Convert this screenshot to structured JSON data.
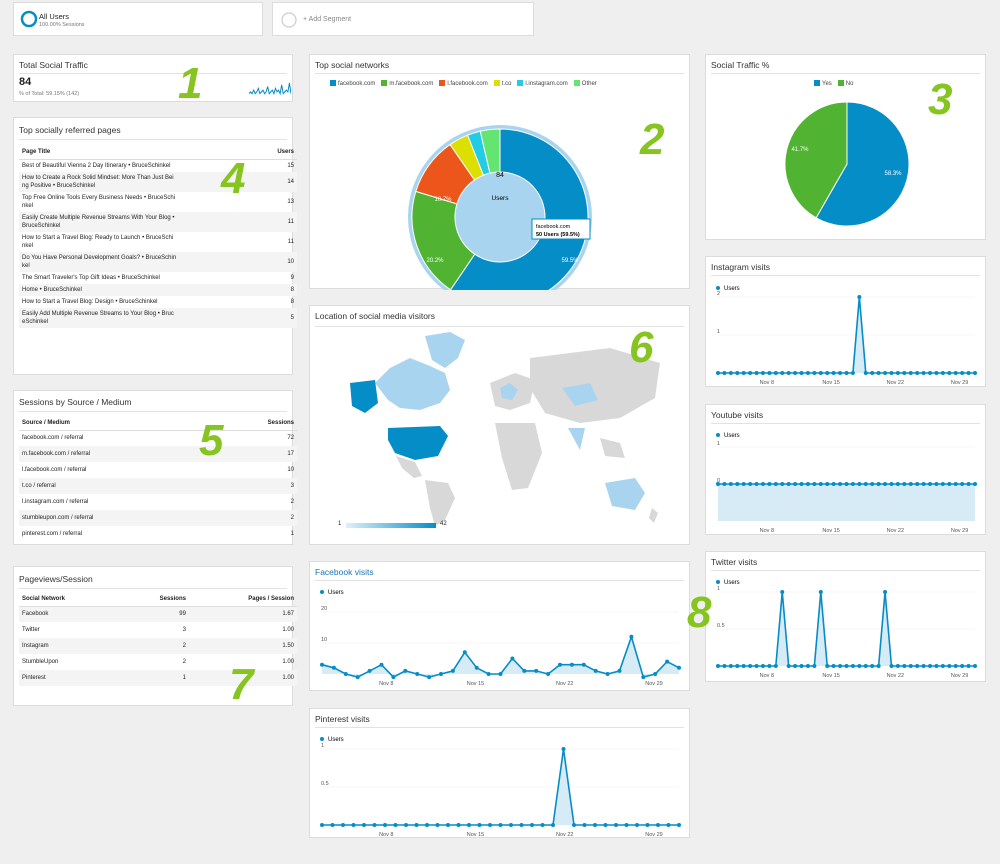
{
  "segments": {
    "all_users": {
      "label": "All Users",
      "sub": "100.00% Sessions"
    },
    "add_segment": "+ Add Segment"
  },
  "total_social": {
    "title": "Total Social Traffic",
    "value": "84",
    "sub": "% of Total: 59.15% (142)",
    "sparkline": [
      3,
      4,
      3,
      5,
      3,
      4,
      6,
      3,
      4,
      5,
      3,
      4,
      7,
      3,
      4,
      5,
      3,
      6,
      4,
      5,
      3,
      8,
      3,
      4,
      5,
      4,
      9,
      3
    ]
  },
  "markers": [
    "1",
    "2",
    "3",
    "4",
    "5",
    "6",
    "7",
    "8"
  ],
  "top_pages": {
    "title": "Top socially referred pages",
    "col1": "Page Title",
    "col2": "Users",
    "rows": [
      {
        "title": "Best of Beautiful Vienna 2 Day Itinerary • BruceSchinkel",
        "users": "15"
      },
      {
        "title": "How to Create a Rock Solid Mindset: More Than Just Bei\nng Positive • BruceSchinkel",
        "users": "14"
      },
      {
        "title": "Top Free Online Tools Every Business Needs • BruceSchi\nnkel",
        "users": "13"
      },
      {
        "title": "Easily Create Multiple Revenue Streams With Your Blog •\nBruceSchinkel",
        "users": "11"
      },
      {
        "title": "How to Start a Travel Blog: Ready to Launch • BruceSchi\nnkel",
        "users": "11"
      },
      {
        "title": "Do You Have Personal Development Goals? • BruceSchin\nkel",
        "users": "10"
      },
      {
        "title": "The Smart Traveler's Top Gift Ideas • BruceSchinkel",
        "users": "9"
      },
      {
        "title": "Home • BruceSchinkel",
        "users": "8"
      },
      {
        "title": "How to Start a Travel Blog: Design • BruceSchinkel",
        "users": "8"
      },
      {
        "title": "Easily Add Multiple Revenue Streams to Your Blog • Bruc\neSchinkel",
        "users": "5"
      }
    ]
  },
  "sessions_source": {
    "title": "Sessions by Source / Medium",
    "col1": "Source / Medium",
    "col2": "Sessions",
    "rows": [
      {
        "source": "facebook.com / referral",
        "sessions": "72"
      },
      {
        "source": "m.facebook.com / referral",
        "sessions": "17"
      },
      {
        "source": "l.facebook.com / referral",
        "sessions": "10"
      },
      {
        "source": "t.co / referral",
        "sessions": "3"
      },
      {
        "source": "l.instagram.com / referral",
        "sessions": "2"
      },
      {
        "source": "stumbleupon.com / referral",
        "sessions": "2"
      },
      {
        "source": "pinterest.com / referral",
        "sessions": "1"
      }
    ]
  },
  "pageviews": {
    "title": "Pageviews/Session",
    "col1": "Social Network",
    "col2": "Sessions",
    "col3": "Pages / Session",
    "rows": [
      {
        "network": "Facebook",
        "sessions": "99",
        "pps": "1.67"
      },
      {
        "network": "Twitter",
        "sessions": "3",
        "pps": "1.00"
      },
      {
        "network": "Instagram",
        "sessions": "2",
        "pps": "1.50"
      },
      {
        "network": "StumbleUpon",
        "sessions": "2",
        "pps": "1.00"
      },
      {
        "network": "Pinterest",
        "sessions": "1",
        "pps": "1.00"
      }
    ]
  },
  "top_networks": {
    "title": "Top social networks",
    "center_value": "84",
    "center_label": "Users",
    "tooltip_title": "facebook.com",
    "tooltip_value": "50 Users (59.5%)",
    "labels": [
      "59.5%",
      "20.2%",
      "10.7%"
    ]
  },
  "social_pct": {
    "title": "Social Traffic %",
    "labels": [
      "58.3%",
      "41.7%"
    ]
  },
  "map": {
    "title": "Location of social media visitors",
    "scale_min": "1",
    "scale_max": "42"
  },
  "facebook_visits": {
    "title": "Facebook visits",
    "legend": "Users",
    "yticks": [
      "20",
      "10"
    ]
  },
  "pinterest_visits": {
    "title": "Pinterest visits",
    "legend": "Users",
    "yticks": [
      "1",
      "0.5"
    ]
  },
  "instagram_visits": {
    "title": "Instagram visits",
    "legend": "Users",
    "yticks": [
      "2",
      "1"
    ]
  },
  "youtube_visits": {
    "title": "Youtube visits",
    "legend": "Users",
    "yticks": [
      "1",
      "0"
    ]
  },
  "twitter_visits": {
    "title": "Twitter visits",
    "legend": "Users",
    "yticks": [
      "1",
      "0.5"
    ]
  },
  "colors": {
    "blue": "#058dc7",
    "green": "#50b432",
    "orange": "#ed561b",
    "yellow": "#dddf00",
    "cyan": "#24cbe5",
    "lightgreen": "#64e572",
    "marker": "#86c41f"
  },
  "chart_data": [
    {
      "type": "pie",
      "chart": "top_networks",
      "legend": [
        "facebook.com",
        "m.facebook.com",
        "l.facebook.com",
        "t.co",
        "l.instagram.com",
        "Other"
      ],
      "values": [
        59.5,
        20.2,
        10.7,
        3.6,
        2.4,
        3.6
      ]
    },
    {
      "type": "pie",
      "chart": "social_pct",
      "legend": [
        "Yes",
        "No"
      ],
      "values": [
        58.3,
        41.7
      ]
    },
    {
      "type": "line",
      "chart": "instagram_visits",
      "xticks": [
        "Nov 8",
        "Nov 15",
        "Nov 22",
        "Nov 29"
      ],
      "ylim": [
        0,
        2
      ],
      "values": [
        0,
        0,
        0,
        0,
        0,
        0,
        0,
        0,
        0,
        0,
        0,
        0,
        0,
        0,
        0,
        0,
        0,
        0,
        0,
        0,
        0,
        0,
        2,
        0,
        0,
        0,
        0,
        0,
        0,
        0,
        0,
        0,
        0,
        0,
        0,
        0,
        0,
        0,
        0,
        0,
        0
      ]
    },
    {
      "type": "line",
      "chart": "youtube_visits",
      "xticks": [
        "Nov 8",
        "Nov 15",
        "Nov 22",
        "Nov 29"
      ],
      "ylim": [
        -1,
        1
      ],
      "values": [
        0,
        0,
        0,
        0,
        0,
        0,
        0,
        0,
        0,
        0,
        0,
        0,
        0,
        0,
        0,
        0,
        0,
        0,
        0,
        0,
        0,
        0,
        0,
        0,
        0,
        0,
        0,
        0,
        0,
        0,
        0,
        0,
        0,
        0,
        0,
        0,
        0,
        0,
        0,
        0,
        0
      ]
    },
    {
      "type": "line",
      "chart": "twitter_visits",
      "xticks": [
        "Nov 8",
        "Nov 15",
        "Nov 22",
        "Nov 29"
      ],
      "ylim": [
        0,
        1
      ],
      "values": [
        0,
        0,
        0,
        0,
        0,
        0,
        0,
        0,
        0,
        0,
        1,
        0,
        0,
        0,
        0,
        0,
        1,
        0,
        0,
        0,
        0,
        0,
        0,
        0,
        0,
        0,
        1,
        0,
        0,
        0,
        0,
        0,
        0,
        0,
        0,
        0,
        0,
        0,
        0,
        0,
        0
      ]
    },
    {
      "type": "area",
      "chart": "facebook_visits",
      "xticks": [
        "Nov 8",
        "Nov 15",
        "Nov 22",
        "Nov 29"
      ],
      "ylim": [
        0,
        20
      ],
      "values": [
        3,
        2,
        0,
        -1,
        1,
        3,
        -1,
        1,
        0,
        -1,
        0,
        1,
        7,
        2,
        0,
        0,
        5,
        1,
        1,
        0,
        3,
        3,
        3,
        1,
        0,
        1,
        12,
        -1,
        0,
        4,
        2
      ]
    },
    {
      "type": "line",
      "chart": "pinterest_visits",
      "xticks": [
        "Nov 8",
        "Nov 15",
        "Nov 22",
        "Nov 29"
      ],
      "ylim": [
        0,
        1
      ],
      "values": [
        0,
        0,
        0,
        0,
        0,
        0,
        0,
        0,
        0,
        0,
        0,
        0,
        0,
        0,
        0,
        0,
        0,
        0,
        0,
        0,
        0,
        0,
        0,
        1,
        0,
        0,
        0,
        0,
        0,
        0,
        0,
        0,
        0,
        0,
        0
      ]
    }
  ]
}
